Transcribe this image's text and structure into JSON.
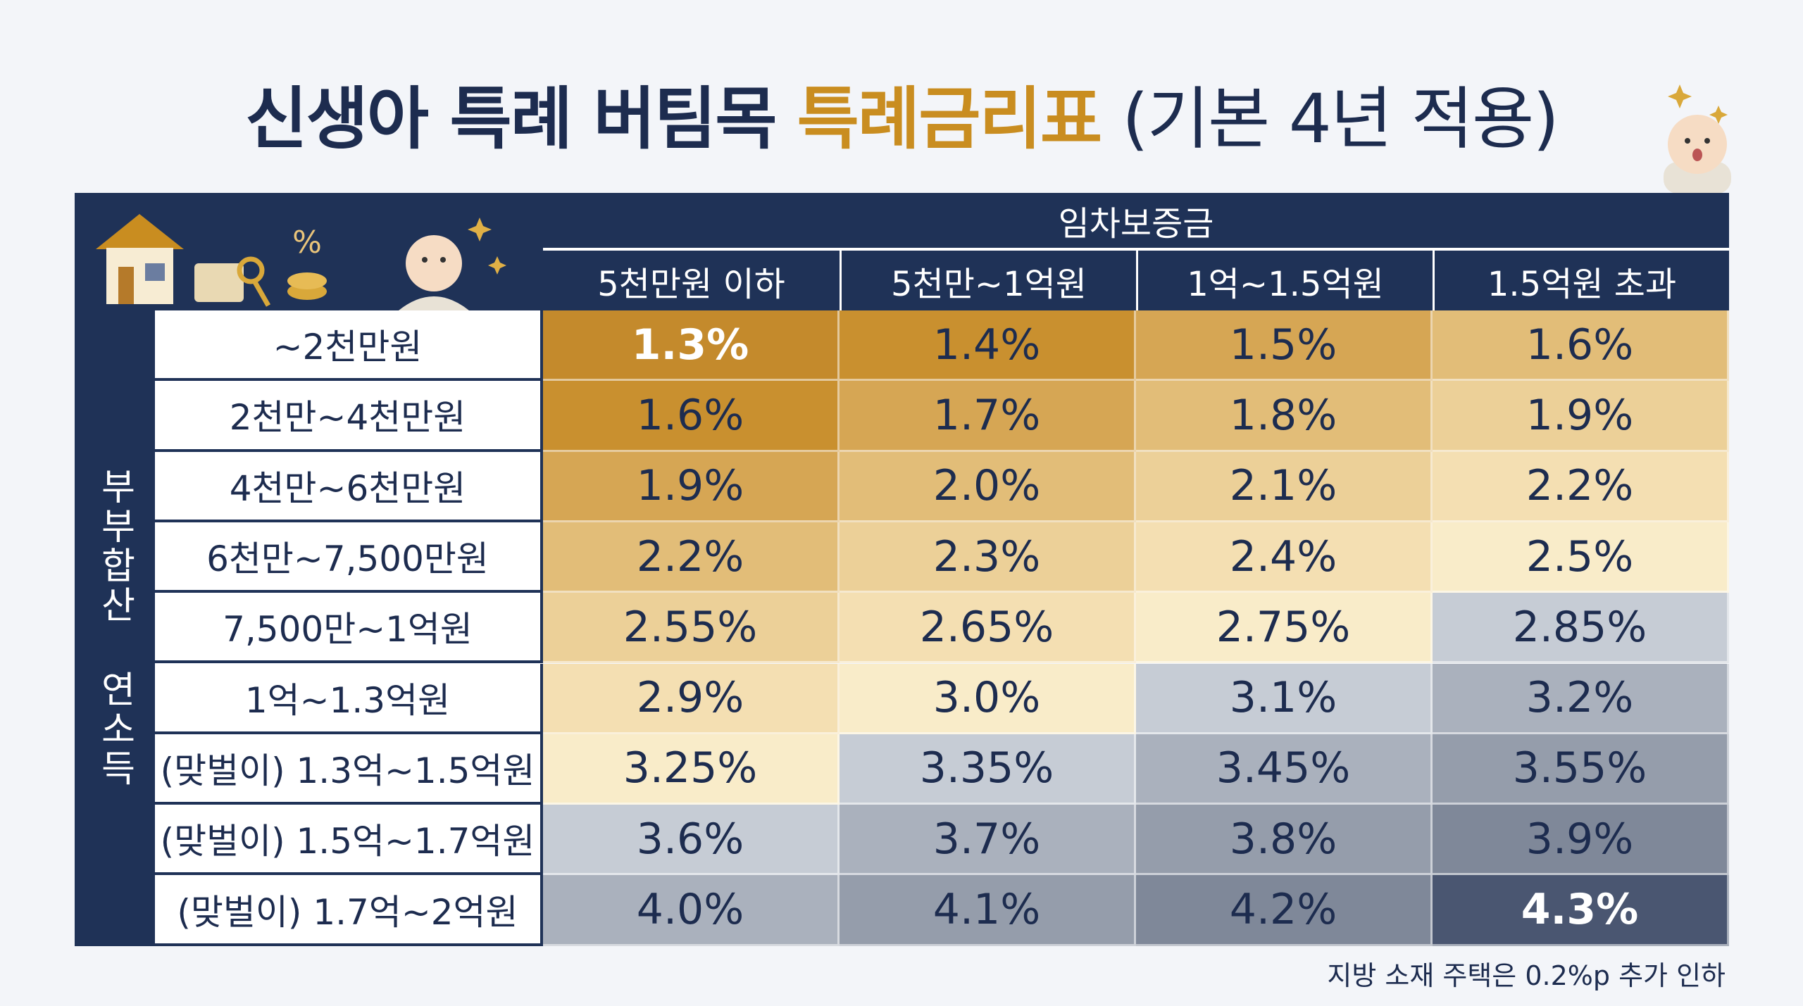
{
  "title": {
    "main": "신생아 특례 버팀목",
    "highlight": "특례금리표",
    "suffix": "(기본 4년 적용)"
  },
  "table": {
    "group_header": "임차보증금",
    "columns": [
      "5천만원 이하",
      "5천만~1억원",
      "1억~1.5억원",
      "1.5억원 초과"
    ],
    "row_group_label": "부부합산 연소득",
    "rows": [
      {
        "label": "~2천만원",
        "cells": [
          "1.3%",
          "1.4%",
          "1.5%",
          "1.6%"
        ]
      },
      {
        "label": "2천만~4천만원",
        "cells": [
          "1.6%",
          "1.7%",
          "1.8%",
          "1.9%"
        ]
      },
      {
        "label": "4천만~6천만원",
        "cells": [
          "1.9%",
          "2.0%",
          "2.1%",
          "2.2%"
        ]
      },
      {
        "label": "6천만~7,500만원",
        "cells": [
          "2.2%",
          "2.3%",
          "2.4%",
          "2.5%"
        ]
      },
      {
        "label": "7,500만~1억원",
        "cells": [
          "2.55%",
          "2.65%",
          "2.75%",
          "2.85%"
        ]
      },
      {
        "label": "1억~1.3억원",
        "cells": [
          "2.9%",
          "3.0%",
          "3.1%",
          "3.2%"
        ]
      },
      {
        "label": "(맞벌이) 1.3억~1.5억원",
        "cells": [
          "3.25%",
          "3.35%",
          "3.45%",
          "3.55%"
        ]
      },
      {
        "label": "(맞벌이) 1.5억~1.7억원",
        "cells": [
          "3.6%",
          "3.7%",
          "3.8%",
          "3.9%"
        ]
      },
      {
        "label": "(맞벌이) 1.7억~2억원",
        "cells": [
          "4.0%",
          "4.1%",
          "4.2%",
          "4.3%"
        ]
      }
    ]
  },
  "footnote": "지방 소재 주택은 0.2%p 추가 인하"
}
